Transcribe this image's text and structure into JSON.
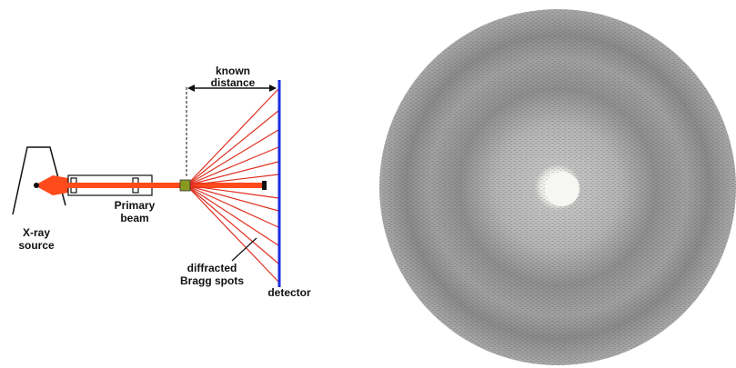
{
  "labels": {
    "source": [
      "X-ray",
      "source"
    ],
    "beam": [
      "Primary",
      "beam"
    ],
    "distance": [
      "known",
      "distance"
    ],
    "spots": [
      "diffracted",
      "Bragg spots"
    ],
    "detector": "detector"
  }
}
